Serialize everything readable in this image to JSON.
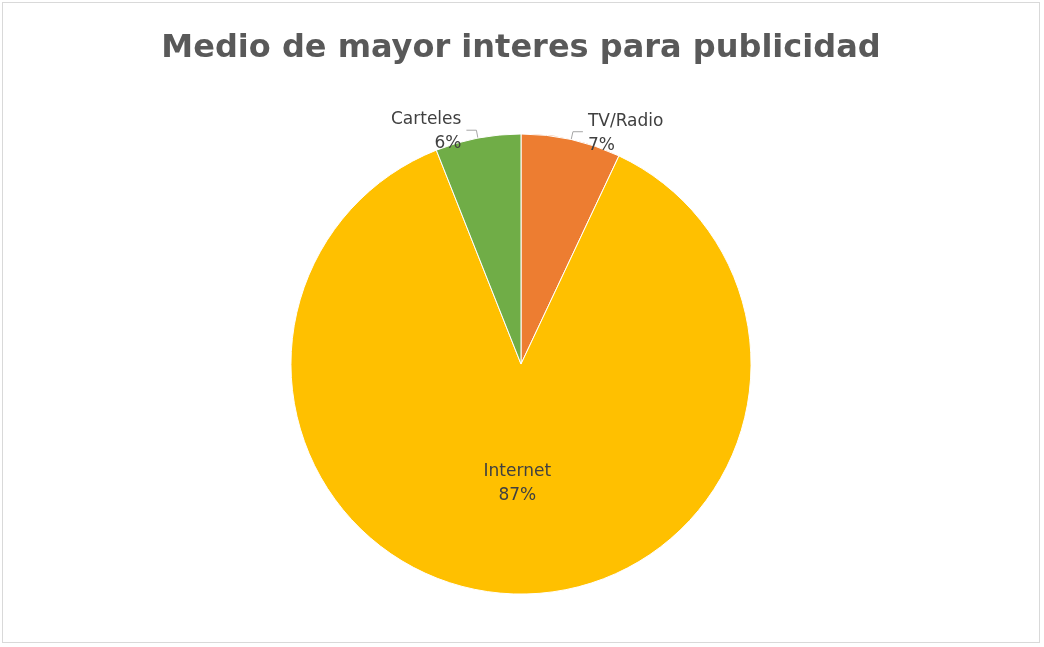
{
  "chart_data": {
    "type": "pie",
    "title": "Medio de mayor interes para publicidad",
    "categories": [
      "TV/Radio",
      "Internet",
      "Carteles"
    ],
    "values": [
      7,
      87,
      6
    ],
    "colors": [
      "#ed7d31",
      "#ffc000",
      "#70ad47"
    ],
    "value_labels": [
      "7%",
      "87%",
      "6%"
    ]
  }
}
